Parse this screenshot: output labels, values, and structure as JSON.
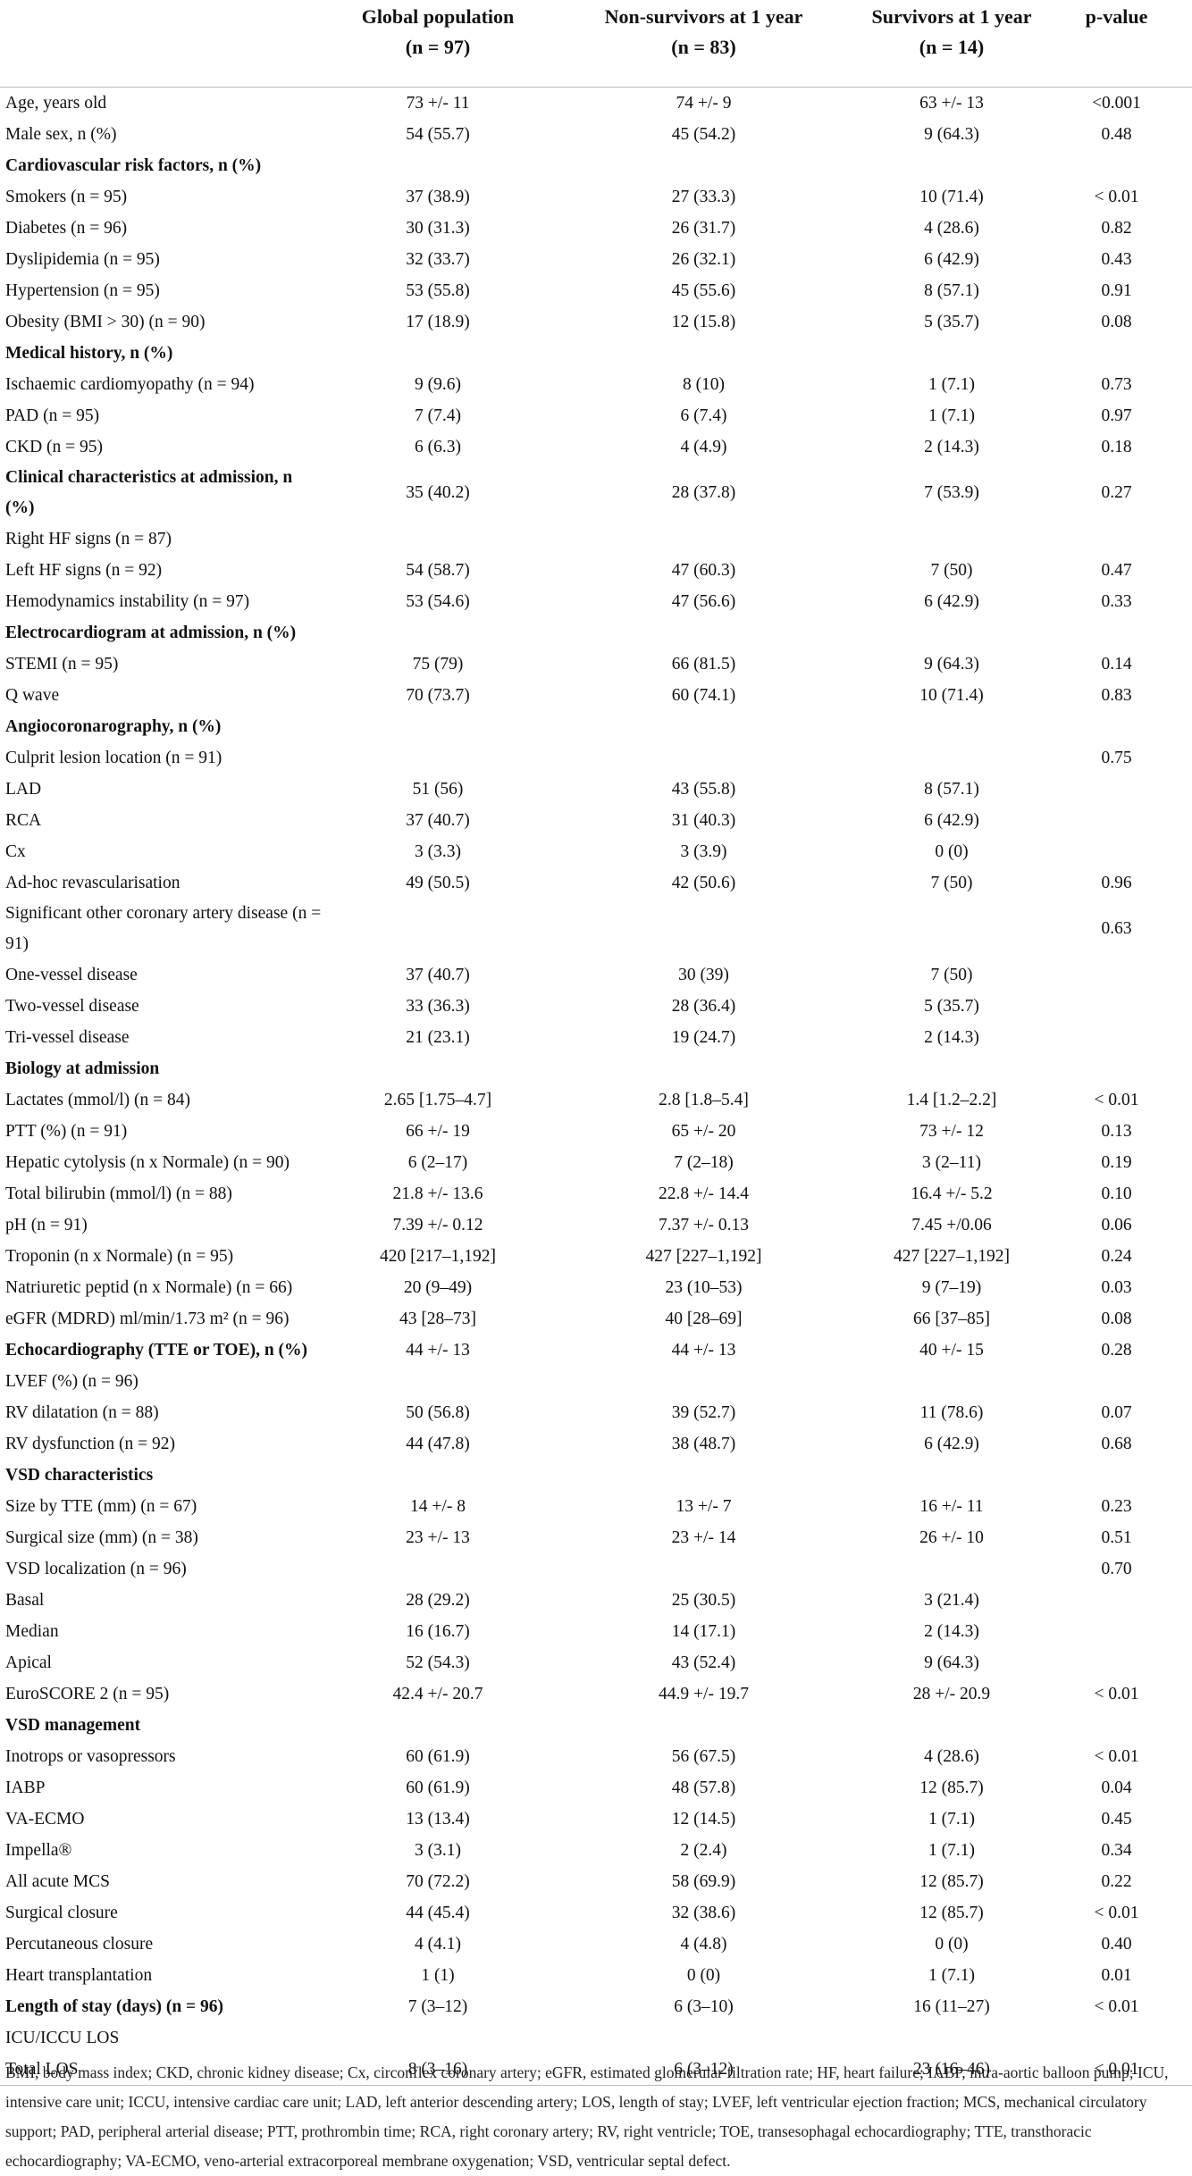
{
  "table": {
    "headers": [
      {
        "title": "Global population",
        "n": "(n = 97)"
      },
      {
        "title": "Non-survivors at 1 year",
        "n": "(n = 83)"
      },
      {
        "title": "Survivors at 1 year",
        "n": "(n = 14)"
      },
      {
        "title": "p-value"
      }
    ],
    "rows": [
      {
        "cells": [
          "Age, years old",
          "73 +/- 11",
          "74 +/- 9",
          "63 +/- 13",
          "<0.001"
        ]
      },
      {
        "cells": [
          "Male sex, n (%)",
          "54 (55.7)",
          "45 (54.2)",
          "9 (64.3)",
          "0.48"
        ]
      },
      {
        "cells": [
          "Cardiovascular risk factors, n (%)"
        ],
        "section": true
      },
      {
        "cells": [
          "Smokers (n = 95)",
          "37 (38.9)",
          "27 (33.3)",
          "10 (71.4)",
          "< 0.01"
        ]
      },
      {
        "cells": [
          "Diabetes (n = 96)",
          "30 (31.3)",
          "26 (31.7)",
          "4 (28.6)",
          "0.82"
        ]
      },
      {
        "cells": [
          "Dyslipidemia (n = 95)",
          "32 (33.7)",
          "26 (32.1)",
          "6 (42.9)",
          "0.43"
        ]
      },
      {
        "cells": [
          "Hypertension (n = 95)",
          "53 (55.8)",
          "45 (55.6)",
          "8 (57.1)",
          "0.91"
        ]
      },
      {
        "cells": [
          "Obesity (BMI > 30) (n = 90)",
          "17 (18.9)",
          "12 (15.8)",
          "5 (35.7)",
          "0.08"
        ]
      },
      {
        "cells": [
          "Medical history, n (%)"
        ],
        "section": true
      },
      {
        "cells": [
          "Ischaemic cardiomyopathy (n = 94)",
          "9 (9.6)",
          "8 (10)",
          "1 (7.1)",
          "0.73"
        ]
      },
      {
        "cells": [
          "PAD (n = 95)",
          "7 (7.4)",
          "6 (7.4)",
          "1 (7.1)",
          "0.97"
        ]
      },
      {
        "cells": [
          "CKD (n = 95)",
          "6 (6.3)",
          "4 (4.9)",
          "2 (14.3)",
          "0.18"
        ]
      },
      {
        "cells": [
          "Clinical characteristics at admission, n (%)",
          "35 (40.2)",
          "28 (37.8)",
          "7 (53.9)",
          "0.27"
        ],
        "section": true
      },
      {
        "cells": [
          "Right HF signs (n = 87)"
        ]
      },
      {
        "cells": [
          "Left HF signs (n = 92)",
          "54 (58.7)",
          "47 (60.3)",
          "7 (50)",
          "0.47"
        ]
      },
      {
        "cells": [
          "Hemodynamics instability (n = 97)",
          "53 (54.6)",
          "47 (56.6)",
          "6 (42.9)",
          "0.33"
        ]
      },
      {
        "cells": [
          "Electrocardiogram at admission, n (%)"
        ],
        "section": true
      },
      {
        "cells": [
          "STEMI (n = 95)",
          "75 (79)",
          "66 (81.5)",
          "9 (64.3)",
          "0.14"
        ]
      },
      {
        "cells": [
          "Q wave",
          "70 (73.7)",
          "60 (74.1)",
          "10 (71.4)",
          "0.83"
        ]
      },
      {
        "cells": [
          "Angiocoronarography, n (%)"
        ],
        "section": true
      },
      {
        "cells": [
          "Culprit lesion location (n = 91)",
          null,
          null,
          null,
          "0.75"
        ]
      },
      {
        "cells": [
          "LAD",
          "51 (56)",
          "43 (55.8)",
          "8 (57.1)"
        ]
      },
      {
        "cells": [
          "RCA",
          "37 (40.7)",
          "31 (40.3)",
          "6 (42.9)"
        ]
      },
      {
        "cells": [
          "Cx",
          "3 (3.3)",
          "3 (3.9)",
          "0 (0)"
        ]
      },
      {
        "cells": [
          "Ad-hoc revascularisation",
          "49 (50.5)",
          "42 (50.6)",
          "7 (50)",
          "0.96"
        ]
      },
      {
        "cells": [
          "Significant other coronary artery disease (n = 91)",
          null,
          null,
          null,
          "0.63"
        ]
      },
      {
        "cells": [
          "One-vessel disease",
          "37 (40.7)",
          "30 (39)",
          "7 (50)"
        ]
      },
      {
        "cells": [
          "Two-vessel disease",
          "33 (36.3)",
          "28 (36.4)",
          "5 (35.7)"
        ]
      },
      {
        "cells": [
          "Tri-vessel disease",
          "21 (23.1)",
          "19 (24.7)",
          "2 (14.3)"
        ]
      },
      {
        "cells": [
          "Biology at admission"
        ],
        "section": true
      },
      {
        "cells": [
          "Lactates (mmol/l) (n = 84)",
          "2.65 [1.75–4.7]",
          "2.8 [1.8–5.4]",
          "1.4 [1.2–2.2]",
          "< 0.01"
        ]
      },
      {
        "cells": [
          "PTT (%) (n = 91)",
          "66 +/- 19",
          "65 +/- 20",
          "73 +/- 12",
          "0.13"
        ]
      },
      {
        "cells": [
          "Hepatic cytolysis (n x Normale) (n = 90)",
          "6 (2–17)",
          "7 (2–18)",
          "3 (2–11)",
          "0.19"
        ]
      },
      {
        "cells": [
          "Total bilirubin (mmol/l) (n = 88)",
          "21.8 +/- 13.6",
          "22.8 +/- 14.4",
          "16.4 +/- 5.2",
          "0.10"
        ]
      },
      {
        "cells": [
          "pH (n = 91)",
          "7.39 +/- 0.12",
          "7.37 +/- 0.13",
          "7.45 +/0.06",
          "0.06"
        ]
      },
      {
        "cells": [
          "Troponin (n x Normale) (n = 95)",
          "420 [217–1,192]",
          "427 [227–1,192]",
          "427 [227–1,192]",
          "0.24"
        ]
      },
      {
        "cells": [
          "Natriuretic peptid (n x Normale) (n = 66)",
          "20 (9–49)",
          "23 (10–53)",
          "9 (7–19)",
          "0.03"
        ]
      },
      {
        "cells": [
          "eGFR (MDRD) ml/min/1.73 m² (n = 96)",
          "43 [28–73]",
          "40 [28–69]",
          "66 [37–85]",
          "0.08"
        ]
      },
      {
        "cells": [
          "Echocardiography (TTE or TOE), n (%)",
          "44 +/- 13",
          "44 +/- 13",
          "40 +/- 15",
          "0.28"
        ],
        "section": true
      },
      {
        "cells": [
          "LVEF (%) (n = 96)"
        ]
      },
      {
        "cells": [
          "RV dilatation (n = 88)",
          "50 (56.8)",
          "39 (52.7)",
          "11 (78.6)",
          "0.07"
        ]
      },
      {
        "cells": [
          "RV dysfunction (n = 92)",
          "44 (47.8)",
          "38 (48.7)",
          "6 (42.9)",
          "0.68"
        ]
      },
      {
        "cells": [
          "VSD characteristics"
        ],
        "section": true
      },
      {
        "cells": [
          "Size by TTE (mm) (n = 67)",
          "14 +/- 8",
          "13 +/- 7",
          "16 +/- 11",
          "0.23"
        ]
      },
      {
        "cells": [
          "Surgical size (mm) (n = 38)",
          "23 +/- 13",
          "23 +/- 14",
          "26 +/- 10",
          "0.51"
        ]
      },
      {
        "cells": [
          "VSD localization (n = 96)",
          null,
          null,
          null,
          "0.70"
        ]
      },
      {
        "cells": [
          "Basal",
          "28 (29.2)",
          "25 (30.5)",
          "3 (21.4)"
        ]
      },
      {
        "cells": [
          "Median",
          "16 (16.7)",
          "14 (17.1)",
          "2 (14.3)"
        ]
      },
      {
        "cells": [
          "Apical",
          "52 (54.3)",
          "43 (52.4)",
          "9 (64.3)"
        ]
      },
      {
        "cells": [
          "EuroSCORE 2 (n = 95)",
          "42.4 +/- 20.7",
          "44.9 +/- 19.7",
          "28 +/- 20.9",
          "< 0.01"
        ]
      },
      {
        "cells": [
          "VSD management"
        ],
        "section": true
      },
      {
        "cells": [
          "Inotrops or vasopressors",
          "60 (61.9)",
          "56 (67.5)",
          "4 (28.6)",
          "< 0.01"
        ]
      },
      {
        "cells": [
          "IABP",
          "60 (61.9)",
          "48 (57.8)",
          "12 (85.7)",
          "0.04"
        ]
      },
      {
        "cells": [
          "VA-ECMO",
          "13 (13.4)",
          "12 (14.5)",
          "1 (7.1)",
          "0.45"
        ]
      },
      {
        "cells": [
          "Impella®",
          "3 (3.1)",
          "2 (2.4)",
          "1 (7.1)",
          "0.34"
        ]
      },
      {
        "cells": [
          "All acute MCS",
          "70 (72.2)",
          "58 (69.9)",
          "12 (85.7)",
          "0.22"
        ]
      },
      {
        "cells": [
          "Surgical closure",
          "44 (45.4)",
          "32 (38.6)",
          "12 (85.7)",
          "< 0.01"
        ]
      },
      {
        "cells": [
          "Percutaneous closure",
          "4 (4.1)",
          "4 (4.8)",
          "0 (0)",
          "0.40"
        ]
      },
      {
        "cells": [
          "Heart transplantation",
          "1 (1)",
          "0 (0)",
          "1 (7.1)",
          "0.01"
        ]
      },
      {
        "cells": [
          "Length of stay (days) (n = 96)",
          "7 (3–12)",
          "6 (3–10)",
          "16 (11–27)",
          "< 0.01"
        ],
        "section": true
      },
      {
        "cells": [
          "ICU/ICCU LOS"
        ]
      },
      {
        "cells": [
          "Total LOS",
          "8 (3–16)",
          "6 (3–12)",
          "23 (16–46)",
          "< 0.01"
        ]
      }
    ],
    "footnote": "BMI, body mass index; CKD, chronic kidney disease; Cx, circonflex coronary artery; eGFR, estimated glomerular filtration rate; HF, heart failure; IABP, intra-aortic balloon pump; ICU, intensive care unit; ICCU, intensive cardiac care unit; LAD, left anterior descending artery; LOS, length of stay; LVEF, left ventricular ejection fraction; MCS, mechanical circulatory support; PAD, peripheral arterial disease; PTT, prothrombin time; RCA, right coronary artery; RV, right ventricle; TOE, transesophagal echocardiography; TTE, transthoracic echocardiography; VA-ECMO, veno-arterial extracorporeal membrane oxygenation; VSD, ventricular septal defect."
  }
}
